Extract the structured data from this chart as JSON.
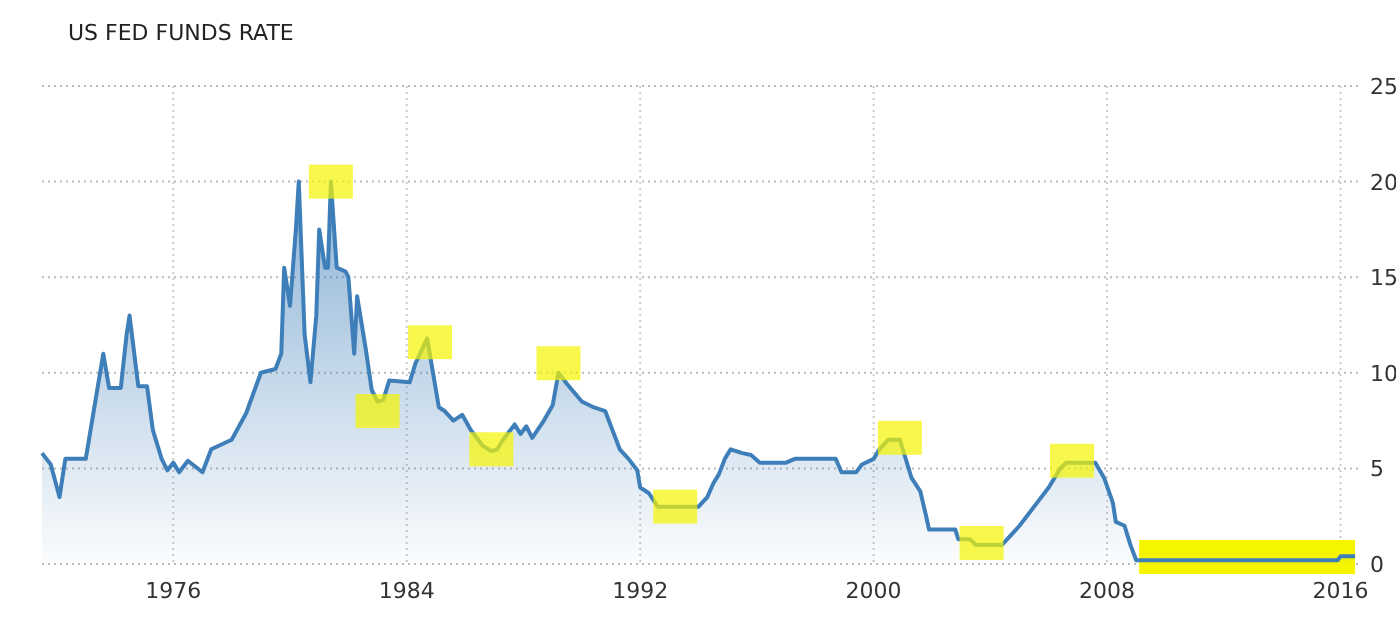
{
  "chart_data": {
    "type": "area",
    "title": "US FED FUNDS RATE",
    "xlim": [
      1971.5,
      2016.6
    ],
    "xticks": [
      1976,
      1984,
      1992,
      2000,
      2008,
      2016
    ],
    "ylim": [
      0,
      25
    ],
    "yticks": [
      0,
      5,
      10,
      15,
      20,
      25
    ],
    "grid": true,
    "bands": [
      {
        "axis": "x",
        "from": 2009.1,
        "to": 2016.5,
        "color": "#f5f500"
      }
    ],
    "series": [
      {
        "type": "scatter",
        "marker": "square",
        "color": "#f5f500",
        "x": [
          1981.4,
          1983.0,
          1984.8,
          1986.9,
          1989.2,
          1993.2,
          2000.9,
          2003.7,
          2006.8
        ],
        "values": [
          20,
          8,
          11.6,
          6,
          10.5,
          3,
          6.6,
          1.1,
          5.4
        ]
      },
      {
        "color": "#3f7fb9",
        "x": [
          1971.5,
          1971.8,
          1972.1,
          1972.3,
          1973.0,
          1973.6,
          1973.8,
          1974.2,
          1974.4,
          1974.5,
          1974.8,
          1975.1,
          1975.3,
          1975.6,
          1975.8,
          1976.0,
          1976.2,
          1976.5,
          1977.0,
          1977.3,
          1978.0,
          1978.5,
          1979.0,
          1979.5,
          1979.7,
          1979.8,
          1980.0,
          1980.2,
          1980.3,
          1980.5,
          1980.7,
          1980.9,
          1981.0,
          1981.2,
          1981.3,
          1981.4,
          1981.6,
          1981.9,
          1982.0,
          1982.2,
          1982.3,
          1982.6,
          1982.8,
          1983.0,
          1983.2,
          1983.4,
          1984.1,
          1984.3,
          1984.7,
          1984.9,
          1985.1,
          1985.3,
          1985.6,
          1985.9,
          1986.2,
          1986.6,
          1986.9,
          1987.1,
          1987.3,
          1987.7,
          1987.9,
          1988.1,
          1988.3,
          1988.7,
          1989.0,
          1989.2,
          1989.5,
          1990.0,
          1990.4,
          1990.8,
          1991.0,
          1991.3,
          1991.6,
          1991.9,
          1992.0,
          1992.3,
          1992.6,
          1994.0,
          1994.3,
          1994.5,
          1994.7,
          1994.9,
          1995.1,
          1995.5,
          1995.8,
          1996.1,
          1997.0,
          1997.3,
          1998.7,
          1998.9,
          1999.4,
          1999.6,
          2000.0,
          2000.2,
          2000.5,
          2000.9,
          2001.0,
          2001.3,
          2001.6,
          2001.8,
          2001.9,
          2002.8,
          2002.9,
          2003.3,
          2003.5,
          2004.4,
          2005.0,
          2005.5,
          2006.0,
          2006.4,
          2006.6,
          2007.6,
          2007.9,
          2008.2,
          2008.3,
          2008.6,
          2008.8,
          2009.0,
          2015.9,
          2016.0,
          2016.5
        ],
        "values": [
          5.8,
          5.2,
          3.5,
          5.5,
          5.5,
          11,
          9.2,
          9.2,
          12,
          13,
          9.3,
          9.3,
          7,
          5.5,
          4.9,
          5.3,
          4.8,
          5.4,
          4.8,
          6,
          6.5,
          7.9,
          10,
          10.2,
          11,
          15.5,
          13.5,
          17.5,
          20,
          12,
          9.5,
          13,
          17.5,
          15.5,
          15.5,
          20,
          15.5,
          15.3,
          15,
          11,
          14,
          11.2,
          9.1,
          8.5,
          8.6,
          9.6,
          9.5,
          10.5,
          11.8,
          10,
          8.2,
          8,
          7.5,
          7.8,
          7,
          6.2,
          5.9,
          6,
          6.5,
          7.3,
          6.8,
          7.2,
          6.6,
          7.5,
          8.3,
          10,
          9.4,
          8.5,
          8.2,
          8,
          7.2,
          6,
          5.5,
          4.9,
          4,
          3.7,
          3,
          3,
          3.5,
          4.2,
          4.7,
          5.5,
          6,
          5.8,
          5.7,
          5.3,
          5.3,
          5.5,
          5.5,
          4.8,
          4.8,
          5.2,
          5.5,
          6,
          6.5,
          6.5,
          6,
          4.5,
          3.8,
          2.5,
          1.8,
          1.8,
          1.3,
          1.3,
          1,
          1,
          2,
          3,
          4,
          5,
          5.3,
          5.3,
          4.5,
          3.2,
          2.2,
          2,
          1,
          0.2,
          0.2,
          0.4,
          0.4
        ]
      }
    ]
  }
}
